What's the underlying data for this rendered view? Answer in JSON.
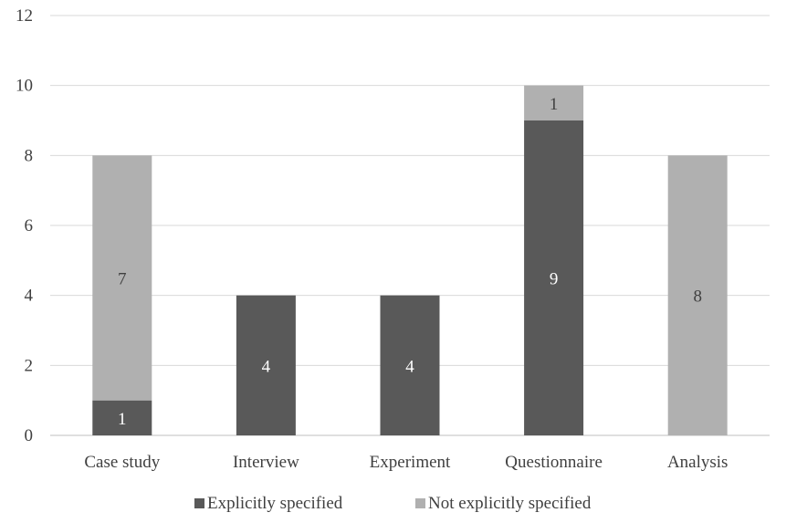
{
  "chart_data": {
    "type": "bar",
    "stacked": true,
    "categories": [
      "Case study",
      "Interview",
      "Experiment",
      "Questionnaire",
      "Analysis"
    ],
    "series": [
      {
        "name": "Explicitly specified",
        "values": [
          1,
          4,
          4,
          9,
          0
        ],
        "color": "#595959"
      },
      {
        "name": "Not explicitly specified",
        "values": [
          7,
          0,
          0,
          1,
          8
        ],
        "color": "#b0b0b0"
      }
    ],
    "ylim": [
      0,
      12
    ],
    "yticks": [
      "0",
      "2",
      "4",
      "6",
      "8",
      "10",
      "12"
    ],
    "grid": true,
    "legend_position": "bottom",
    "data_labels": true
  }
}
